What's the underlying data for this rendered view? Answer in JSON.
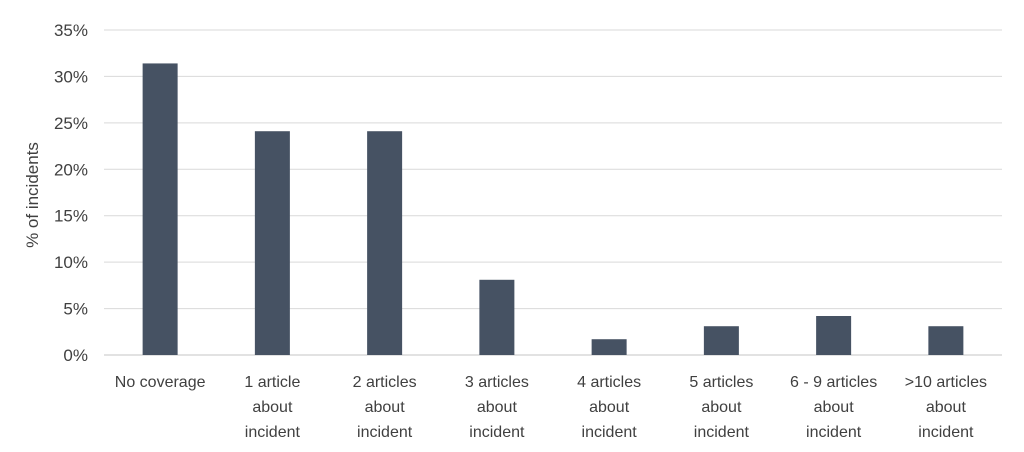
{
  "chart_data": {
    "type": "bar",
    "title": "",
    "xlabel": "",
    "ylabel": "% of incidents",
    "ylim": [
      0,
      35
    ],
    "yticks": [
      "0%",
      "5%",
      "10%",
      "15%",
      "20%",
      "25%",
      "30%",
      "35%"
    ],
    "categories": [
      [
        "No coverage"
      ],
      [
        "1 article",
        "about",
        "incident"
      ],
      [
        "2 articles",
        "about",
        "incident"
      ],
      [
        "3 articles",
        "about",
        "incident"
      ],
      [
        "4 articles",
        "about",
        "incident"
      ],
      [
        "5 articles",
        "about",
        "incident"
      ],
      [
        "6 - 9 articles",
        "about",
        "incident"
      ],
      [
        ">10 articles",
        "about",
        "incident"
      ]
    ],
    "values": [
      31.4,
      24.1,
      24.1,
      8.1,
      1.7,
      3.1,
      4.2,
      3.1
    ],
    "grid": true,
    "bar_color": "#465263",
    "grid_color": "#d9d9d9"
  }
}
